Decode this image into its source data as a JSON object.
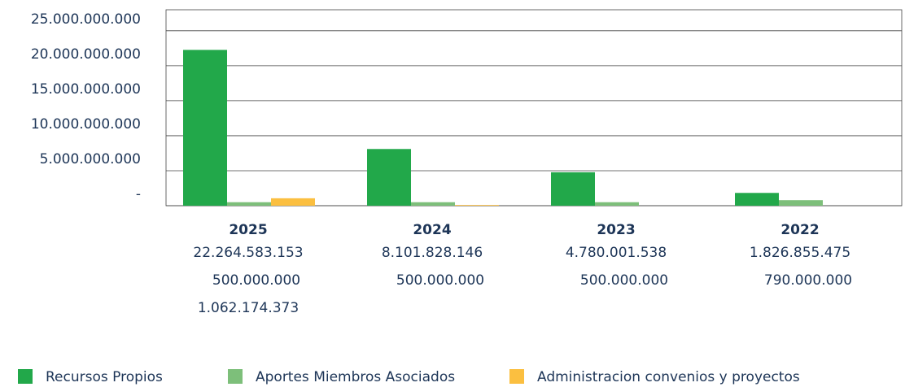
{
  "chart_data": {
    "type": "bar",
    "categories": [
      "2025",
      "2024",
      "2023",
      "2022"
    ],
    "series": [
      {
        "name": "Recursos Propios",
        "color": "#22a84a",
        "values": [
          22264583153,
          8101828146,
          4780001538,
          1826855475
        ],
        "value_labels": [
          "22.264.583.153",
          "8.101.828.146",
          "4.780.001.538",
          "1.826.855.475"
        ]
      },
      {
        "name": "Aportes Miembros Asociados",
        "color": "#7dbf7a",
        "values": [
          500000000,
          500000000,
          500000000,
          790000000
        ],
        "value_labels": [
          "500.000.000",
          "500.000.000",
          "500.000.000",
          "790.000.000"
        ]
      },
      {
        "name": "Administracion convenios y proyectos",
        "color": "#fbbf40",
        "values": [
          1062174373,
          100000000,
          0,
          0
        ],
        "value_labels": [
          "1.062.174.373",
          null,
          null,
          null
        ]
      }
    ],
    "ylim": [
      0,
      28000000000
    ],
    "yticks": [
      {
        "value": 0,
        "label": "-"
      },
      {
        "value": 5000000000,
        "label": "5.000.000.000"
      },
      {
        "value": 10000000000,
        "label": "10.000.000.000"
      },
      {
        "value": 15000000000,
        "label": "15.000.000.000"
      },
      {
        "value": 20000000000,
        "label": "20.000.000.000"
      },
      {
        "value": 25000000000,
        "label": "25.000.000.000"
      }
    ],
    "grid": true
  }
}
